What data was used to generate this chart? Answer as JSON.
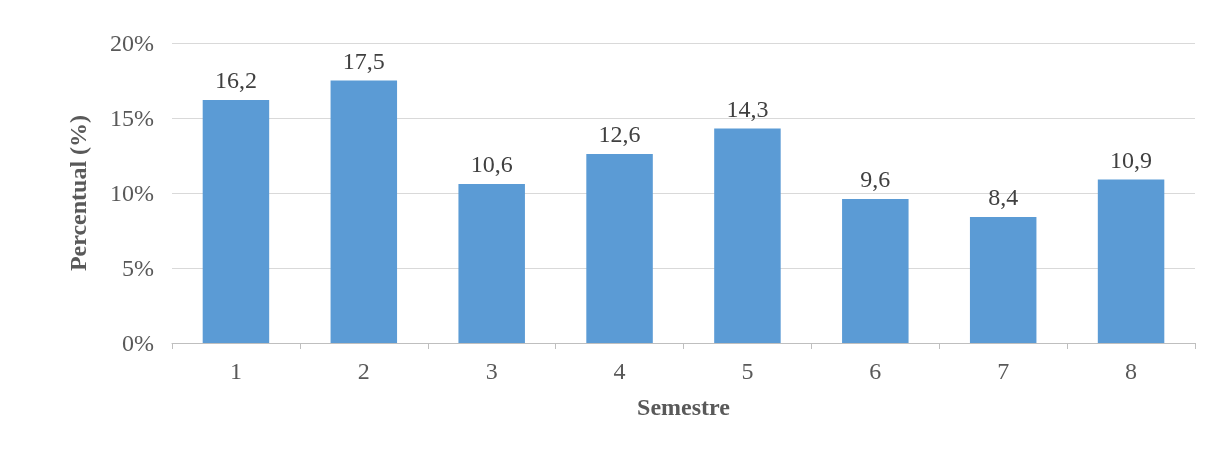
{
  "chart_data": {
    "type": "bar",
    "xlabel": "Semestre",
    "ylabel": "Percentual (%)",
    "categories": [
      "1",
      "2",
      "3",
      "4",
      "5",
      "6",
      "7",
      "8"
    ],
    "values": [
      16.2,
      17.5,
      10.6,
      12.6,
      14.3,
      9.6,
      8.4,
      10.9
    ],
    "value_labels": [
      "16,2",
      "17,5",
      "10,6",
      "12,6",
      "14,3",
      "9,6",
      "8,4",
      "10,9"
    ],
    "color": "#5b9bd5",
    "ylim": [
      0,
      20
    ],
    "yticks": [
      {
        "value": 0,
        "label": "0%"
      },
      {
        "value": 5,
        "label": "5%"
      },
      {
        "value": 10,
        "label": "10%"
      },
      {
        "value": 15,
        "label": "15%"
      },
      {
        "value": 20,
        "label": "20%"
      }
    ],
    "grid": "y"
  }
}
